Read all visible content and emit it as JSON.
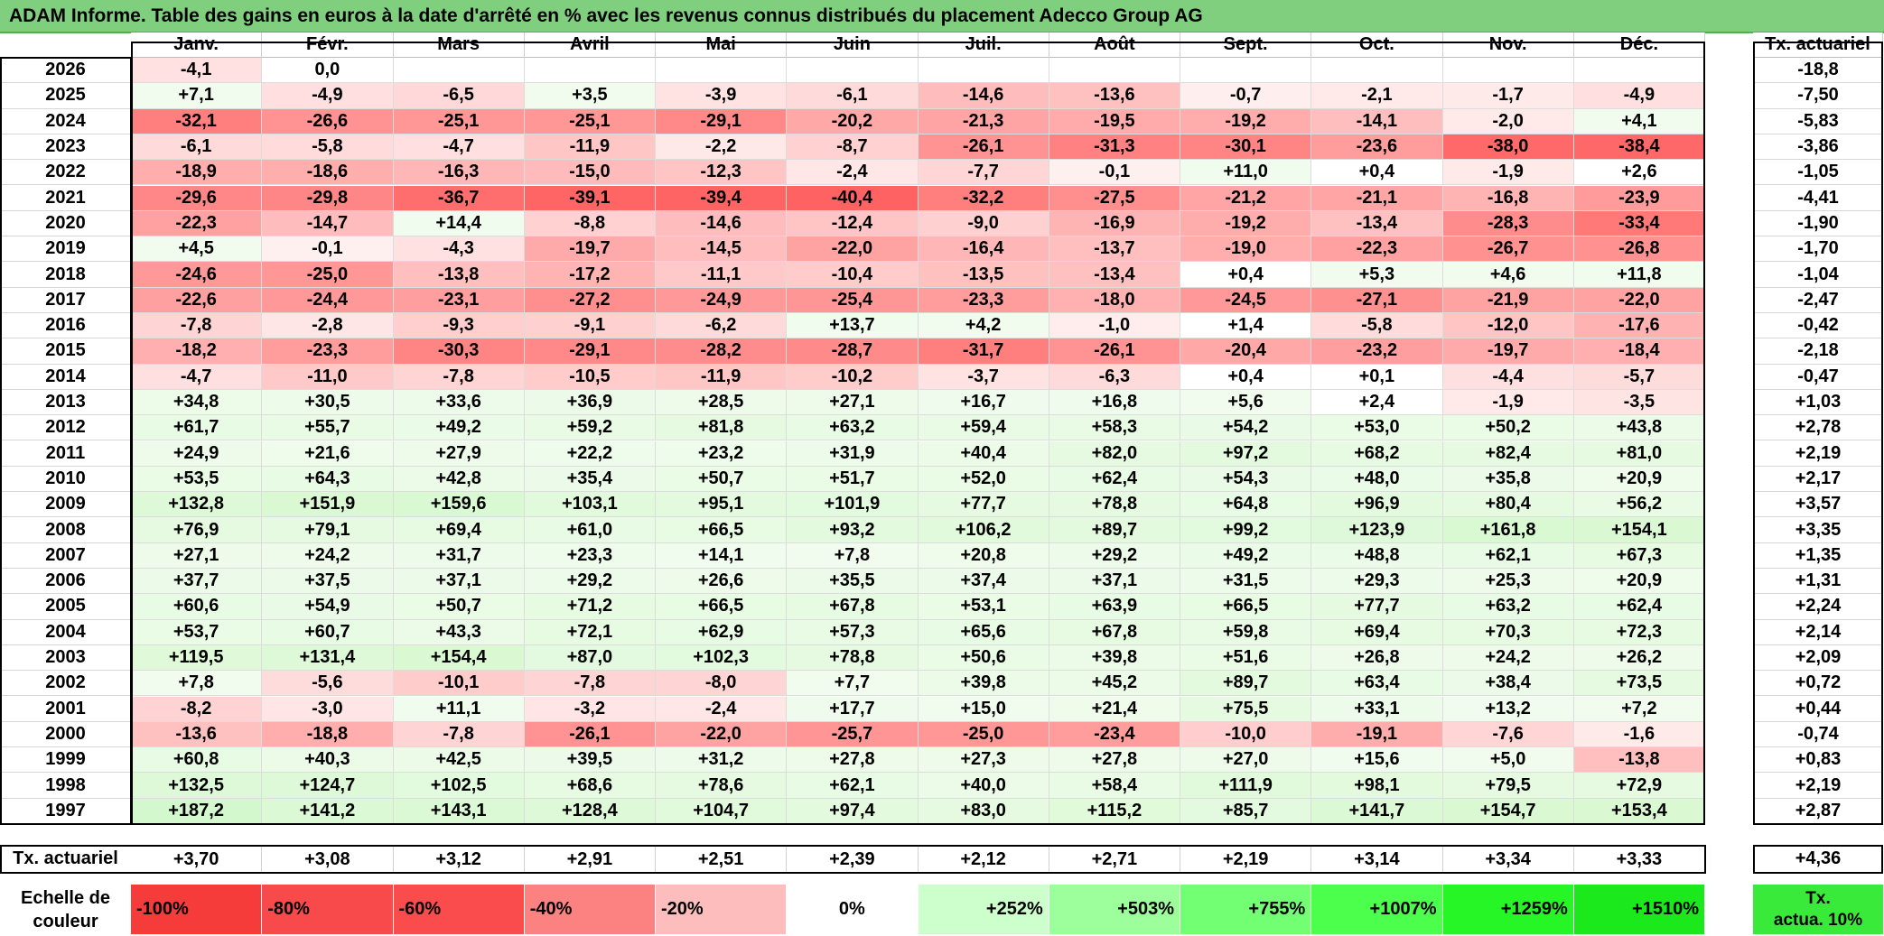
{
  "title": "ADAM Informe. Table des gains en euros à la date d'arrêté en % avec les revenus connus distribués du placement Adecco Group AG",
  "chart_data": {
    "type": "table",
    "months": [
      "Janv.",
      "Févr.",
      "Mars",
      "Avril",
      "Mai",
      "Juin",
      "Juil.",
      "Août",
      "Sept.",
      "Oct.",
      "Nov.",
      "Déc."
    ],
    "rate_header": "Tx. actuariel",
    "rows": [
      {
        "year": "2026",
        "values": [
          "-4,1",
          "0,0",
          "",
          "",
          "",
          "",
          "",
          "",
          "",
          "",
          "",
          ""
        ],
        "rate": "-18,8"
      },
      {
        "year": "2025",
        "values": [
          "+7,1",
          "-4,9",
          "-6,5",
          "+3,5",
          "-3,9",
          "-6,1",
          "-14,6",
          "-13,6",
          "-0,7",
          "-2,1",
          "-1,7",
          "-4,9"
        ],
        "rate": "-7,50"
      },
      {
        "year": "2024",
        "values": [
          "-32,1",
          "-26,6",
          "-25,1",
          "-25,1",
          "-29,1",
          "-20,2",
          "-21,3",
          "-19,5",
          "-19,2",
          "-14,1",
          "-2,0",
          "+4,1"
        ],
        "rate": "-5,83"
      },
      {
        "year": "2023",
        "values": [
          "-6,1",
          "-5,8",
          "-4,7",
          "-11,9",
          "-2,2",
          "-8,7",
          "-26,1",
          "-31,3",
          "-30,1",
          "-23,6",
          "-38,0",
          "-38,4"
        ],
        "rate": "-3,86"
      },
      {
        "year": "2022",
        "values": [
          "-18,9",
          "-18,6",
          "-16,3",
          "-15,0",
          "-12,3",
          "-2,4",
          "-7,7",
          "-0,1",
          "+11,0",
          "+0,4",
          "-1,9",
          "+2,6"
        ],
        "rate": "-1,05"
      },
      {
        "year": "2021",
        "values": [
          "-29,6",
          "-29,8",
          "-36,7",
          "-39,1",
          "-39,4",
          "-40,4",
          "-32,2",
          "-27,5",
          "-21,2",
          "-21,1",
          "-16,8",
          "-23,9"
        ],
        "rate": "-4,41"
      },
      {
        "year": "2020",
        "values": [
          "-22,3",
          "-14,7",
          "+14,4",
          "-8,8",
          "-14,6",
          "-12,4",
          "-9,0",
          "-16,9",
          "-19,2",
          "-13,4",
          "-28,3",
          "-33,4"
        ],
        "rate": "-1,90"
      },
      {
        "year": "2019",
        "values": [
          "+4,5",
          "-0,1",
          "-4,3",
          "-19,7",
          "-14,5",
          "-22,0",
          "-16,4",
          "-13,7",
          "-19,0",
          "-22,3",
          "-26,7",
          "-26,8"
        ],
        "rate": "-1,70"
      },
      {
        "year": "2018",
        "values": [
          "-24,6",
          "-25,0",
          "-13,8",
          "-17,2",
          "-11,1",
          "-10,4",
          "-13,5",
          "-13,4",
          "+0,4",
          "+5,3",
          "+4,6",
          "+11,8"
        ],
        "rate": "-1,04"
      },
      {
        "year": "2017",
        "values": [
          "-22,6",
          "-24,4",
          "-23,1",
          "-27,2",
          "-24,9",
          "-25,4",
          "-23,3",
          "-18,0",
          "-24,5",
          "-27,1",
          "-21,9",
          "-22,0"
        ],
        "rate": "-2,47"
      },
      {
        "year": "2016",
        "values": [
          "-7,8",
          "-2,8",
          "-9,3",
          "-9,1",
          "-6,2",
          "+13,7",
          "+4,2",
          "-1,0",
          "+1,4",
          "-5,8",
          "-12,0",
          "-17,6"
        ],
        "rate": "-0,42"
      },
      {
        "year": "2015",
        "values": [
          "-18,2",
          "-23,3",
          "-30,3",
          "-29,1",
          "-28,2",
          "-28,7",
          "-31,7",
          "-26,1",
          "-20,4",
          "-23,2",
          "-19,7",
          "-18,4"
        ],
        "rate": "-2,18"
      },
      {
        "year": "2014",
        "values": [
          "-4,7",
          "-11,0",
          "-7,8",
          "-10,5",
          "-11,9",
          "-10,2",
          "-3,7",
          "-6,3",
          "+0,4",
          "+0,1",
          "-4,4",
          "-5,7"
        ],
        "rate": "-0,47"
      },
      {
        "year": "2013",
        "values": [
          "+34,8",
          "+30,5",
          "+33,6",
          "+36,9",
          "+28,5",
          "+27,1",
          "+16,7",
          "+16,8",
          "+5,6",
          "+2,4",
          "-1,9",
          "-3,5"
        ],
        "rate": "+1,03"
      },
      {
        "year": "2012",
        "values": [
          "+61,7",
          "+55,7",
          "+49,2",
          "+59,2",
          "+81,8",
          "+63,2",
          "+59,4",
          "+58,3",
          "+54,2",
          "+53,0",
          "+50,2",
          "+43,8"
        ],
        "rate": "+2,78"
      },
      {
        "year": "2011",
        "values": [
          "+24,9",
          "+21,6",
          "+27,9",
          "+22,2",
          "+23,2",
          "+31,9",
          "+40,4",
          "+82,0",
          "+97,2",
          "+68,2",
          "+82,4",
          "+81,0"
        ],
        "rate": "+2,19"
      },
      {
        "year": "2010",
        "values": [
          "+53,5",
          "+64,3",
          "+42,8",
          "+35,4",
          "+50,7",
          "+51,7",
          "+52,0",
          "+62,4",
          "+54,3",
          "+48,0",
          "+35,8",
          "+20,9"
        ],
        "rate": "+2,17"
      },
      {
        "year": "2009",
        "values": [
          "+132,8",
          "+151,9",
          "+159,6",
          "+103,1",
          "+95,1",
          "+101,9",
          "+77,7",
          "+78,8",
          "+64,8",
          "+96,9",
          "+80,4",
          "+56,2"
        ],
        "rate": "+3,57"
      },
      {
        "year": "2008",
        "values": [
          "+76,9",
          "+79,1",
          "+69,4",
          "+61,0",
          "+66,5",
          "+93,2",
          "+106,2",
          "+89,7",
          "+99,2",
          "+123,9",
          "+161,8",
          "+154,1"
        ],
        "rate": "+3,35"
      },
      {
        "year": "2007",
        "values": [
          "+27,1",
          "+24,2",
          "+31,7",
          "+23,3",
          "+14,1",
          "+7,8",
          "+20,8",
          "+29,2",
          "+49,2",
          "+48,8",
          "+62,1",
          "+67,3"
        ],
        "rate": "+1,35"
      },
      {
        "year": "2006",
        "values": [
          "+37,7",
          "+37,5",
          "+37,1",
          "+29,2",
          "+26,6",
          "+35,5",
          "+37,4",
          "+37,1",
          "+31,5",
          "+29,3",
          "+25,3",
          "+20,9"
        ],
        "rate": "+1,31"
      },
      {
        "year": "2005",
        "values": [
          "+60,6",
          "+54,9",
          "+50,7",
          "+71,2",
          "+66,5",
          "+67,8",
          "+53,1",
          "+63,9",
          "+66,5",
          "+77,7",
          "+63,2",
          "+62,4"
        ],
        "rate": "+2,24"
      },
      {
        "year": "2004",
        "values": [
          "+53,7",
          "+60,7",
          "+43,3",
          "+72,1",
          "+62,9",
          "+57,3",
          "+65,6",
          "+67,8",
          "+59,8",
          "+69,4",
          "+70,3",
          "+72,3"
        ],
        "rate": "+2,14"
      },
      {
        "year": "2003",
        "values": [
          "+119,5",
          "+131,4",
          "+154,4",
          "+87,0",
          "+102,3",
          "+78,8",
          "+50,6",
          "+39,8",
          "+51,6",
          "+26,8",
          "+24,2",
          "+26,2"
        ],
        "rate": "+2,09"
      },
      {
        "year": "2002",
        "values": [
          "+7,8",
          "-5,6",
          "-10,1",
          "-7,8",
          "-8,0",
          "+7,7",
          "+39,8",
          "+45,2",
          "+89,7",
          "+63,4",
          "+38,4",
          "+73,5"
        ],
        "rate": "+0,72"
      },
      {
        "year": "2001",
        "values": [
          "-8,2",
          "-3,0",
          "+11,1",
          "-3,2",
          "-2,4",
          "+17,7",
          "+15,0",
          "+21,4",
          "+75,5",
          "+33,1",
          "+13,2",
          "+7,2"
        ],
        "rate": "+0,44"
      },
      {
        "year": "2000",
        "values": [
          "-13,6",
          "-18,8",
          "-7,8",
          "-26,1",
          "-22,0",
          "-25,7",
          "-25,0",
          "-23,4",
          "-10,0",
          "-19,1",
          "-7,6",
          "-1,6"
        ],
        "rate": "-0,74"
      },
      {
        "year": "1999",
        "values": [
          "+60,8",
          "+40,3",
          "+42,5",
          "+39,5",
          "+31,2",
          "+27,8",
          "+27,3",
          "+27,8",
          "+27,0",
          "+15,6",
          "+5,0",
          "-13,8"
        ],
        "rate": "+0,83"
      },
      {
        "year": "1998",
        "values": [
          "+132,5",
          "+124,7",
          "+102,5",
          "+68,6",
          "+78,6",
          "+62,1",
          "+40,0",
          "+58,4",
          "+111,9",
          "+98,1",
          "+79,5",
          "+72,9"
        ],
        "rate": "+2,19"
      },
      {
        "year": "1997",
        "values": [
          "+187,2",
          "+141,2",
          "+143,1",
          "+128,4",
          "+104,7",
          "+97,4",
          "+83,0",
          "+115,2",
          "+85,7",
          "+141,7",
          "+154,7",
          "+153,4"
        ],
        "rate": "+2,87"
      }
    ],
    "footer": {
      "label": "Tx. actuariel",
      "values": [
        "+3,70",
        "+3,08",
        "+3,12",
        "+2,91",
        "+2,51",
        "+2,39",
        "+2,12",
        "+2,71",
        "+2,19",
        "+3,14",
        "+3,34",
        "+3,33"
      ],
      "total": "+4,36"
    },
    "color_scale": {
      "label_line1": "Echelle de",
      "label_line2": "couleur",
      "stops": [
        {
          "label": "-100%",
          "color": "#f63b3b"
        },
        {
          "label": "-80%",
          "color": "#f84a4a"
        },
        {
          "label": "-60%",
          "color": "#fa4c4c"
        },
        {
          "label": "-40%",
          "color": "#fc8181"
        },
        {
          "label": "-20%",
          "color": "#fdbdbd"
        },
        {
          "label": "0%",
          "color": "#ffffff"
        },
        {
          "label": "+252%",
          "color": "#ccffcc"
        },
        {
          "label": "+503%",
          "color": "#9cff9c"
        },
        {
          "label": "+755%",
          "color": "#73ff73"
        },
        {
          "label": "+1007%",
          "color": "#4cff4c"
        },
        {
          "label": "+1259%",
          "color": "#26f526"
        },
        {
          "label": "+1510%",
          "color": "#1be91b"
        }
      ],
      "rate_box_line1": "Tx.",
      "rate_box_line2": "actua. 10%"
    },
    "colors": {
      "title_bar": "#7fcf7f",
      "negative_max": "#ff6464",
      "positive_light": "#eafbe6",
      "positive_strong": "#ccf7c4"
    }
  }
}
